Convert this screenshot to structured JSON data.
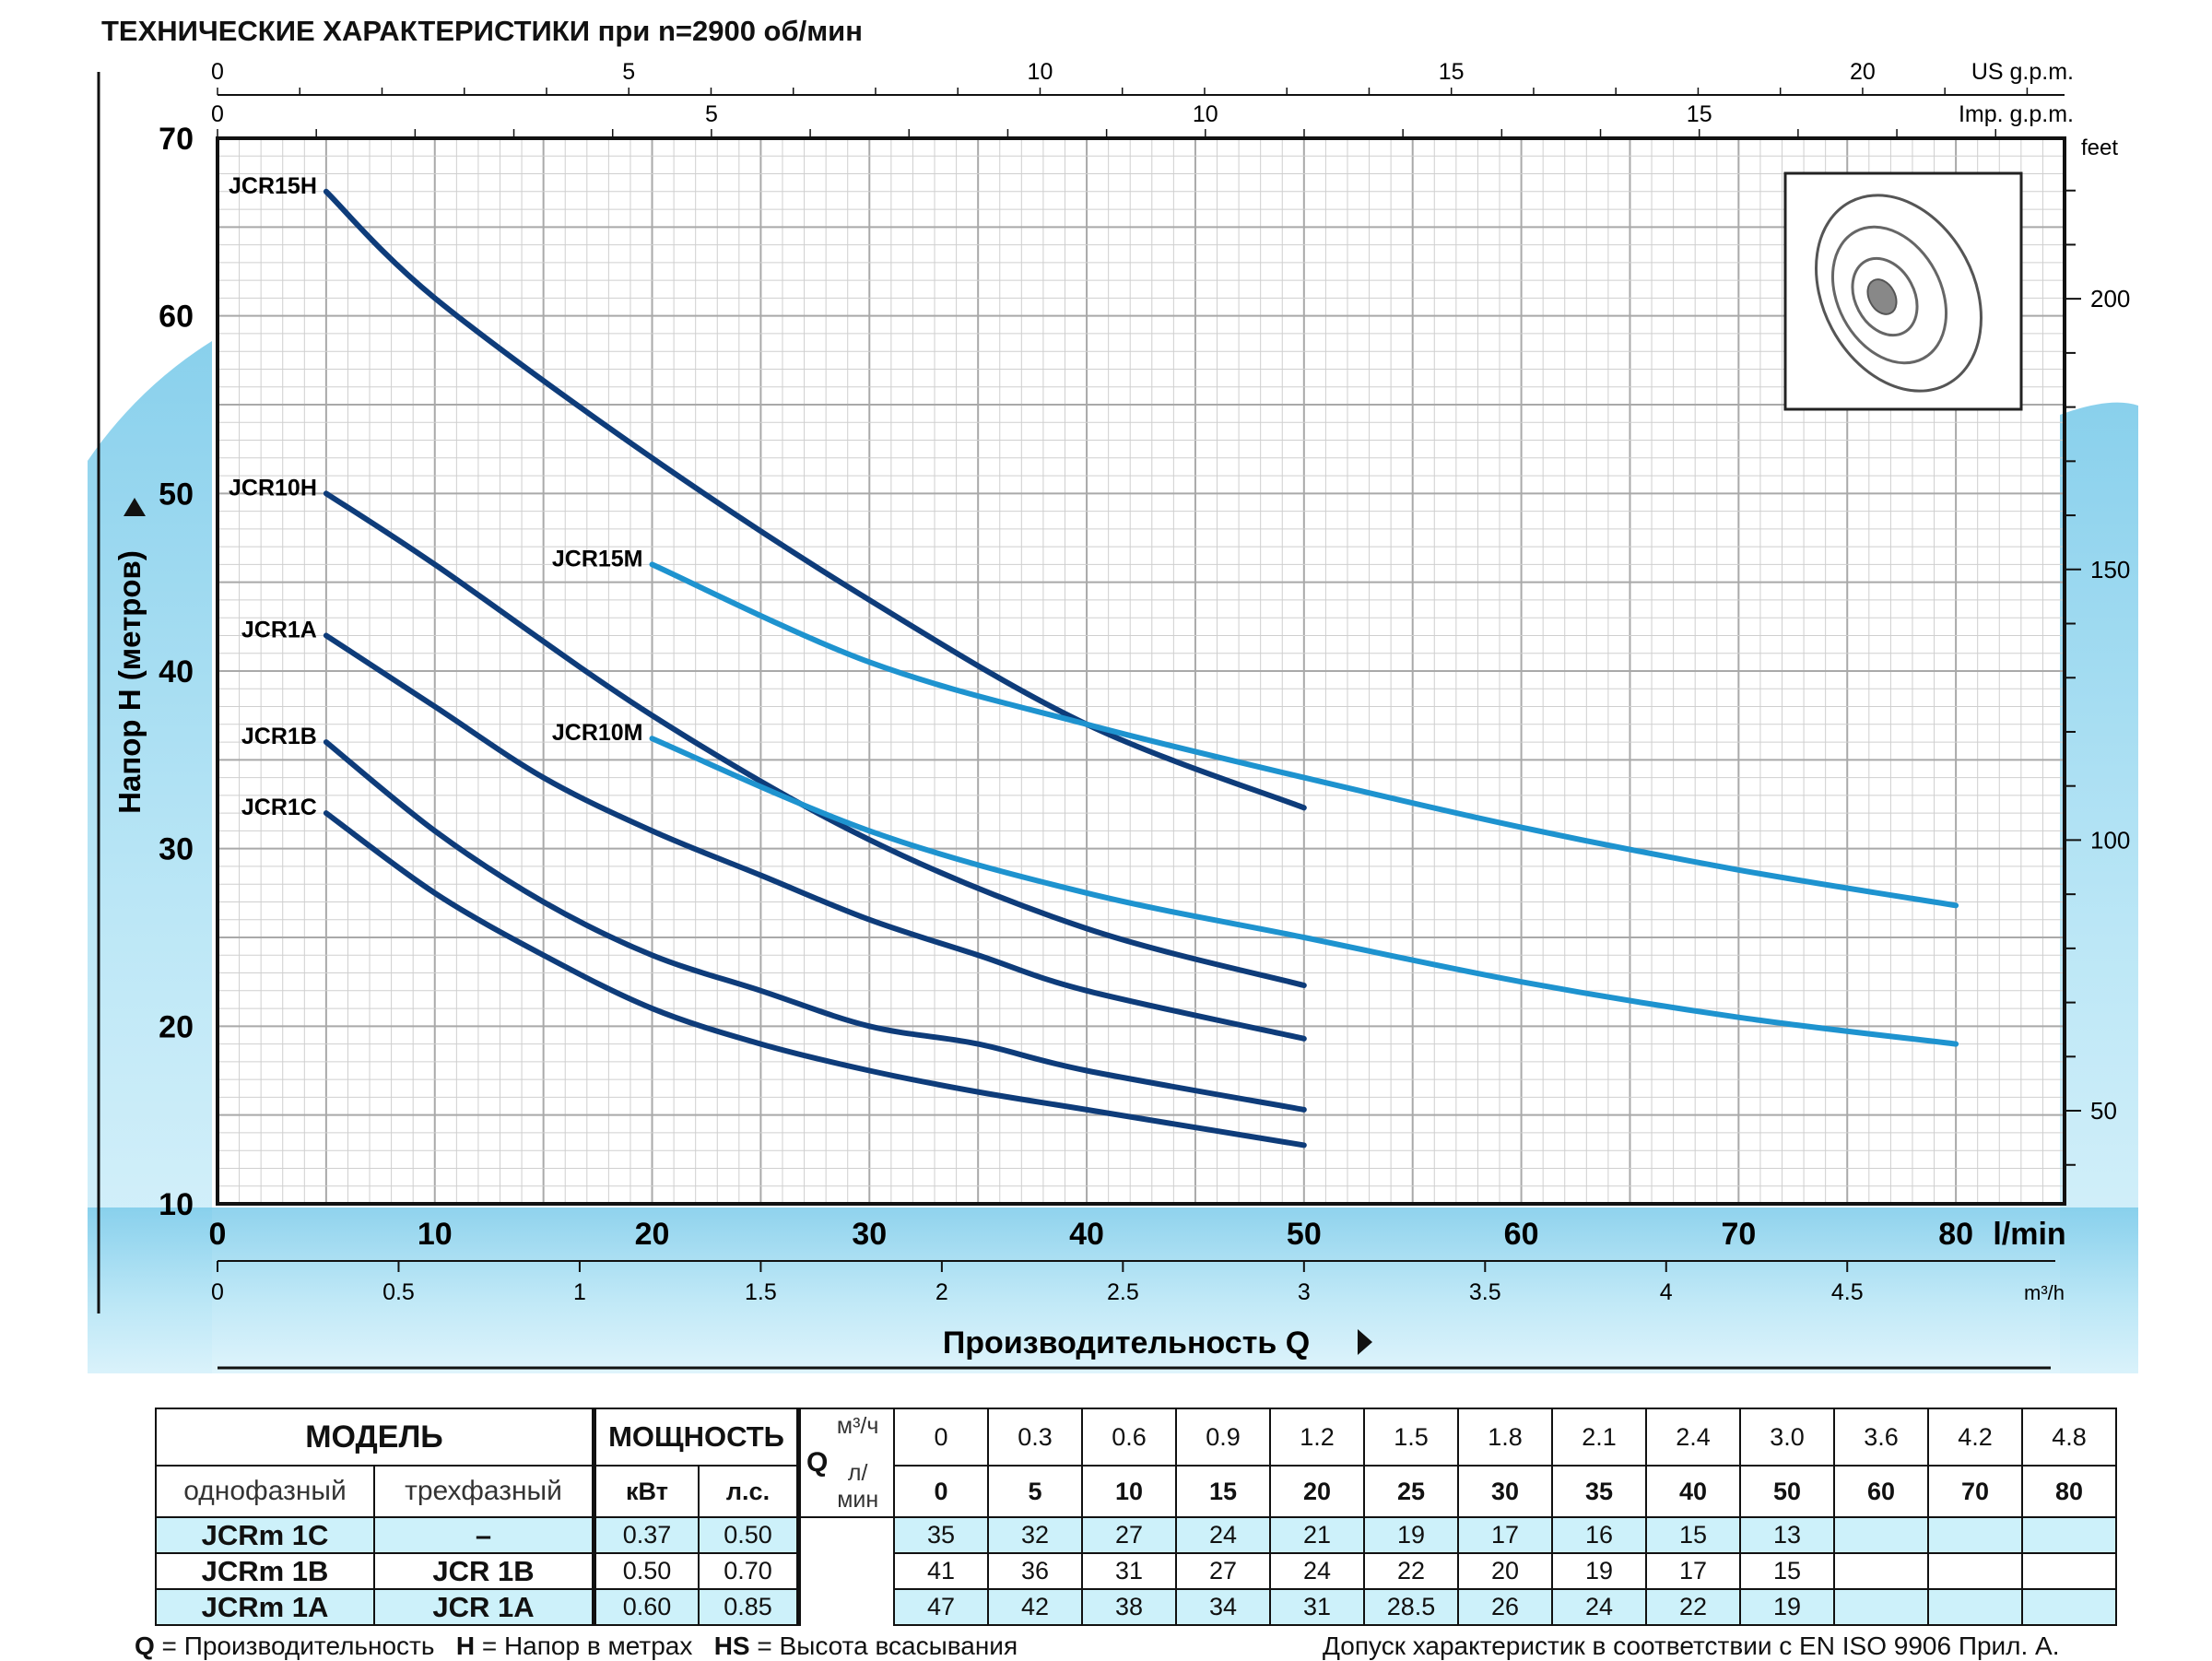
{
  "title": "ТЕХНИЧЕСКИЕ ХАРАКТЕРИСТИКИ при n=2900 об/мин",
  "chart_data": {
    "type": "line",
    "xlabel": "Производительность  Q",
    "ylabel": "Напор H   (метров)",
    "x_unit": "l/min",
    "xlim": [
      0,
      85
    ],
    "ylim": [
      10,
      70
    ],
    "x_ticks": [
      0,
      10,
      20,
      30,
      40,
      50,
      60,
      70,
      80
    ],
    "y_ticks": [
      10,
      20,
      30,
      40,
      50,
      60,
      70
    ],
    "grid": true,
    "secondary_axes": {
      "us_gpm": {
        "label": "US g.p.m.",
        "ticks": [
          0,
          5,
          10,
          15,
          20
        ]
      },
      "imp_gpm": {
        "label": "Imp. g.p.m.",
        "ticks": [
          0,
          5,
          10,
          15
        ]
      },
      "m3h": {
        "label": "m³/h",
        "ticks": [
          "0",
          "0.5",
          "1",
          "1.5",
          "2",
          "2.5",
          "3",
          "3.5",
          "4",
          "4.5"
        ]
      },
      "feet": {
        "label": "feet",
        "ticks": [
          50,
          100,
          150,
          200
        ]
      }
    },
    "series": [
      {
        "name": "JCR15H",
        "x": [
          5,
          10,
          20,
          30,
          40,
          50
        ],
        "y": [
          67,
          61,
          52,
          44,
          37,
          32.3
        ]
      },
      {
        "name": "JCR10H",
        "x": [
          5,
          10,
          20,
          30,
          40,
          50
        ],
        "y": [
          50,
          46,
          37.5,
          30.5,
          25.5,
          22.3
        ]
      },
      {
        "name": "JCR1A",
        "x": [
          5,
          10,
          15,
          20,
          25,
          30,
          35,
          40,
          50
        ],
        "y": [
          42,
          38,
          34,
          31,
          28.5,
          26,
          24,
          22,
          19.3
        ]
      },
      {
        "name": "JCR1B",
        "x": [
          5,
          10,
          15,
          20,
          25,
          30,
          35,
          40,
          50
        ],
        "y": [
          36,
          31,
          27,
          24,
          22,
          20,
          19,
          17.5,
          15.3
        ]
      },
      {
        "name": "JCR1C",
        "x": [
          5,
          10,
          15,
          20,
          25,
          30,
          35,
          40,
          50
        ],
        "y": [
          32,
          27.5,
          24,
          21,
          19,
          17.5,
          16.3,
          15.3,
          13.3
        ]
      },
      {
        "name": "JCR15M",
        "x": [
          20,
          30,
          40,
          50,
          60,
          70,
          80
        ],
        "y": [
          46,
          40.5,
          37,
          34,
          31.2,
          28.8,
          26.8
        ]
      },
      {
        "name": "JCR10M",
        "x": [
          20,
          30,
          40,
          50,
          60,
          70,
          80
        ],
        "y": [
          36.2,
          31,
          27.5,
          25,
          22.5,
          20.5,
          19
        ]
      }
    ],
    "colors": {
      "dark": "#0e3c7a",
      "light": "#1e93cf"
    }
  },
  "table": {
    "model_header": "МОДЕЛЬ",
    "power_header": "МОЩНОСТЬ",
    "single_phase": "однофазный",
    "three_phase": "трехфазный",
    "kw": "кВт",
    "hp": "л.с.",
    "q_label": "Q",
    "m3h_unit": "м³/ч",
    "lmin_unit": "л/мин",
    "q_m3h": [
      "0",
      "0.3",
      "0.6",
      "0.9",
      "1.2",
      "1.5",
      "1.8",
      "2.1",
      "2.4",
      "3.0",
      "3.6",
      "4.2",
      "4.8"
    ],
    "q_lmin": [
      "0",
      "5",
      "10",
      "15",
      "20",
      "25",
      "30",
      "35",
      "40",
      "50",
      "60",
      "70",
      "80"
    ],
    "rows": [
      {
        "single": "JCRm  1C",
        "three": "–",
        "kw": "0.37",
        "hp": "0.50",
        "h": [
          "35",
          "32",
          "27",
          "24",
          "21",
          "19",
          "17",
          "16",
          "15",
          "13",
          "",
          "",
          ""
        ]
      },
      {
        "single": "JCRm  1B",
        "three": "JCR  1B",
        "kw": "0.50",
        "hp": "0.70",
        "h": [
          "41",
          "36",
          "31",
          "27",
          "24",
          "22",
          "20",
          "19",
          "17",
          "15",
          "",
          "",
          ""
        ]
      },
      {
        "single": "JCRm  1A",
        "three": "JCR  1A",
        "kw": "0.60",
        "hp": "0.85",
        "h": [
          "47",
          "42",
          "38",
          "34",
          "31",
          "28.5",
          "26",
          "24",
          "22",
          "19",
          "",
          "",
          ""
        ]
      }
    ]
  },
  "footer": {
    "q_key": "Q",
    "q_text": " = Производительность",
    "h_key": "H",
    "h_text": " = Напор в метрах",
    "hs_key": "HS",
    "hs_text": " = Высота всасывания",
    "tolerance": "Допуск характеристик в соответствии с EN ISO 9906 Прил.  A."
  }
}
